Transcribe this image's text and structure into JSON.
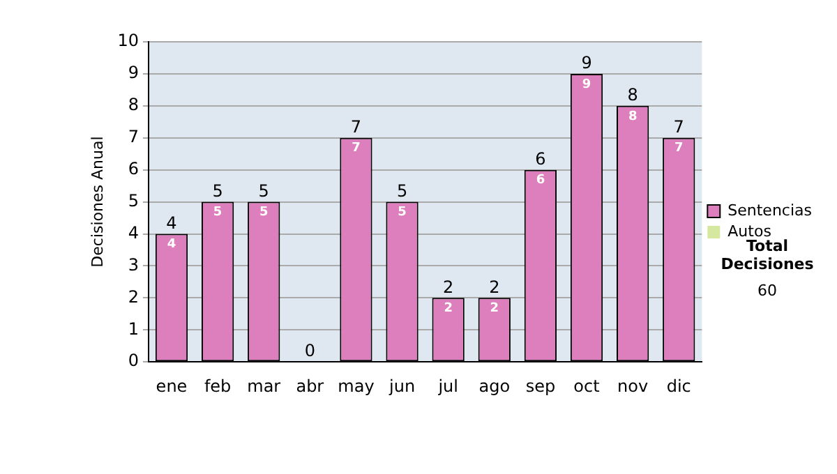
{
  "chart_data": {
    "type": "bar",
    "stacked": true,
    "ylabel": "Decisiones Anual",
    "categories": [
      "ene",
      "feb",
      "mar",
      "abr",
      "may",
      "jun",
      "jul",
      "ago",
      "sep",
      "oct",
      "nov",
      "dic"
    ],
    "series": [
      {
        "name": "Sentencias",
        "color": "#dd7fbc",
        "values": [
          4,
          5,
          5,
          0,
          7,
          5,
          2,
          2,
          6,
          9,
          8,
          7
        ],
        "value_labels": [
          "4",
          "5",
          "5",
          null,
          "7",
          "5",
          "2",
          "2",
          "6",
          "9",
          "8",
          "7"
        ]
      },
      {
        "name": "Autos",
        "color": "#d6e8a0",
        "values": [
          0,
          0,
          0,
          0,
          0,
          0,
          0,
          0,
          0,
          0,
          0,
          0
        ],
        "value_labels": [
          null,
          null,
          null,
          null,
          null,
          null,
          null,
          null,
          null,
          null,
          null,
          null
        ]
      }
    ],
    "totals": [
      "4",
      "5",
      "5",
      "0",
      "7",
      "5",
      "2",
      "2",
      "6",
      "9",
      "8",
      "7"
    ],
    "ylim": [
      0,
      10
    ],
    "yticks": [
      0,
      1,
      2,
      3,
      4,
      5,
      6,
      7,
      8,
      9,
      10
    ],
    "grid": "y",
    "legend": "right",
    "annotations": [
      "Total Decisiones",
      "60"
    ]
  }
}
